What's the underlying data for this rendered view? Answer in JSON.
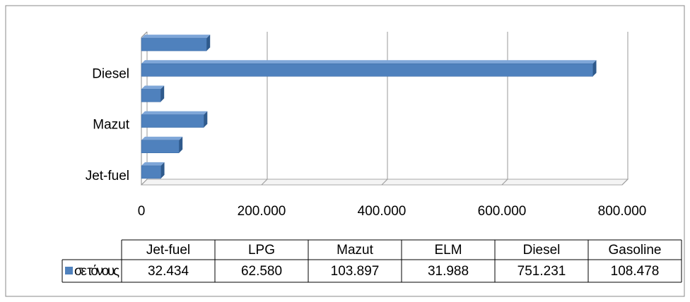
{
  "chart_data": {
    "type": "bar",
    "orientation": "horizontal",
    "categories": [
      "Jet-fuel",
      "LPG",
      "Mazut",
      "ELM",
      "Diesel",
      "Gasoline"
    ],
    "series": [
      {
        "name": "σε τόνους",
        "color": "#4f81bd",
        "values": [
          32434,
          62580,
          103897,
          31988,
          751231,
          108478
        ],
        "value_labels": [
          "32.434",
          "62.580",
          "103.897",
          "31.988",
          "751.231",
          "108.478"
        ]
      }
    ],
    "xlim": [
      0,
      800000
    ],
    "xticks": [
      0,
      {
        "value": 200000,
        "label": "200.000"
      },
      {
        "value": 400000,
        "label": "400.000"
      },
      {
        "value": 600000,
        "label": "600.000"
      },
      {
        "value": 800000,
        "label": "800.000"
      }
    ],
    "grid": true
  }
}
